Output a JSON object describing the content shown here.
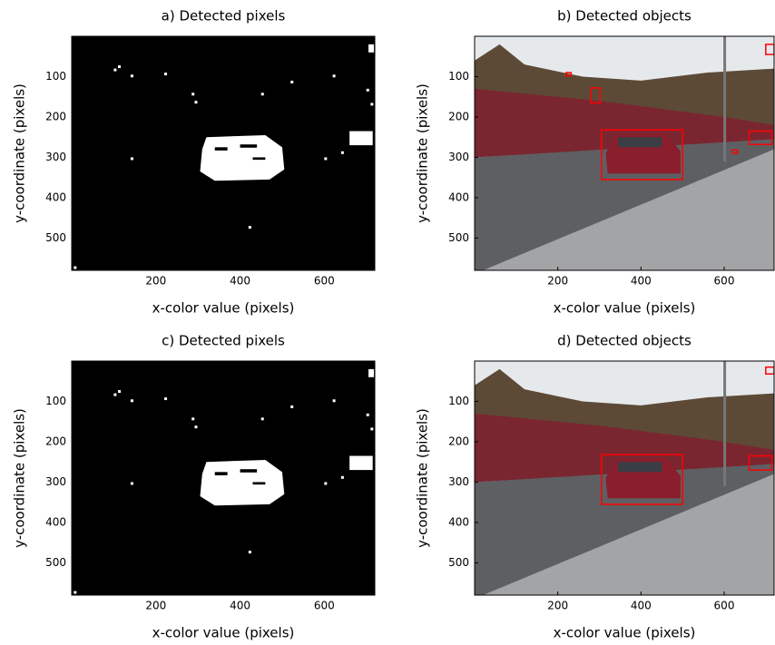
{
  "chart_data": [
    {
      "type": "binary-image",
      "title": "a) Detected pixels",
      "xlabel": "x-color value (pixels)",
      "ylabel": "y-coordinate (pixels)",
      "xlim": [
        0,
        720
      ],
      "ylim": [
        0,
        580
      ],
      "y_reversed": true,
      "xticks": [
        200,
        400,
        600
      ],
      "yticks": [
        100,
        200,
        300,
        400,
        500
      ]
    },
    {
      "type": "photo",
      "title": "b) Detected objects",
      "xlabel": "x-color value (pixels)",
      "ylabel": "y-coordinate (pixels)",
      "xlim": [
        0,
        720
      ],
      "ylim": [
        0,
        580
      ],
      "y_reversed": true,
      "xticks": [
        200,
        400,
        600
      ],
      "yticks": [
        100,
        200,
        300,
        400,
        500
      ],
      "box_color": "#ff0000",
      "boxes": [
        [
          220,
          90,
          232,
          98
        ],
        [
          280,
          128,
          302,
          165
        ],
        [
          305,
          232,
          500,
          355
        ],
        [
          660,
          235,
          715,
          268
        ],
        [
          620,
          282,
          632,
          290
        ],
        [
          700,
          20,
          720,
          45
        ]
      ]
    },
    {
      "type": "binary-image",
      "title": "c) Detected pixels",
      "xlabel": "x-color value (pixels)",
      "ylabel": "y-coordinate (pixels)",
      "xlim": [
        0,
        720
      ],
      "ylim": [
        0,
        580
      ],
      "y_reversed": true,
      "xticks": [
        200,
        400,
        600
      ],
      "yticks": [
        100,
        200,
        300,
        400,
        500
      ]
    },
    {
      "type": "photo",
      "title": "d) Detected objects",
      "xlabel": "x-color value (pixels)",
      "ylabel": "y-coordinate (pixels)",
      "xlim": [
        0,
        720
      ],
      "ylim": [
        0,
        580
      ],
      "y_reversed": true,
      "xticks": [
        200,
        400,
        600
      ],
      "yticks": [
        100,
        200,
        300,
        400,
        500
      ],
      "box_color": "#ff0000",
      "boxes": [
        [
          305,
          232,
          500,
          355
        ],
        [
          660,
          235,
          715,
          270
        ],
        [
          700,
          15,
          720,
          32
        ]
      ]
    }
  ]
}
